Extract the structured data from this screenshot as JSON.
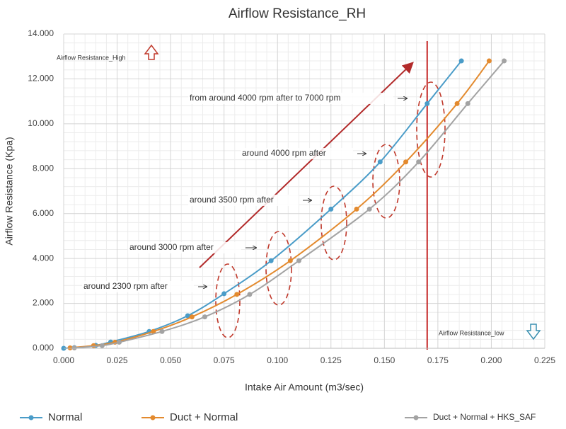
{
  "chart_data": {
    "type": "line",
    "title": "Airflow Resistance_RH",
    "x_label": "Intake Air Amount (m3/sec)",
    "y_label": "Airflow Resistance (Kpa)",
    "xlim": [
      0,
      0.225
    ],
    "ylim": [
      0,
      14
    ],
    "xticks": [
      {
        "value": 0,
        "label": "0.000"
      },
      {
        "value": 0.025,
        "label": "0.025"
      },
      {
        "value": 0.05,
        "label": "0.050"
      },
      {
        "value": 0.075,
        "label": "0.075"
      },
      {
        "value": 0.1,
        "label": "0.100"
      },
      {
        "value": 0.125,
        "label": "0.125"
      },
      {
        "value": 0.15,
        "label": "0.150"
      },
      {
        "value": 0.175,
        "label": "0.175"
      },
      {
        "value": 0.2,
        "label": "0.200"
      },
      {
        "value": 0.225,
        "label": "0.225"
      }
    ],
    "yticks": [
      {
        "value": 0,
        "label": "0.000"
      },
      {
        "value": 2,
        "label": "2.000"
      },
      {
        "value": 4,
        "label": "4.000"
      },
      {
        "value": 6,
        "label": "6.000"
      },
      {
        "value": 8,
        "label": "8.000"
      },
      {
        "value": 10,
        "label": "10.000"
      },
      {
        "value": 12,
        "label": "12.000"
      },
      {
        "value": 14,
        "label": "14.000"
      }
    ],
    "grid": true,
    "legend": "bottom",
    "series": [
      {
        "name": "Normal",
        "color": "#4a9cc8",
        "x": [
          0,
          0.005,
          0.015,
          0.022,
          0.04,
          0.058,
          0.075,
          0.097,
          0.125,
          0.148,
          0.17,
          0.186
        ],
        "values": [
          0,
          0.03,
          0.13,
          0.28,
          0.75,
          1.45,
          2.43,
          3.9,
          6.2,
          8.3,
          10.9,
          12.8
        ]
      },
      {
        "name": "Duct + Normal",
        "color": "#e38a2e",
        "x": [
          0.003,
          0.014,
          0.024,
          0.042,
          0.06,
          0.081,
          0.106,
          0.137,
          0.16,
          0.184,
          0.199
        ],
        "values": [
          0.02,
          0.12,
          0.27,
          0.75,
          1.4,
          2.4,
          3.9,
          6.2,
          8.3,
          10.9,
          12.8
        ]
      },
      {
        "name": "Duct + Normal + HKS_SAF",
        "color": "#a3a3a3",
        "x": [
          0.005,
          0.018,
          0.026,
          0.046,
          0.066,
          0.087,
          0.11,
          0.143,
          0.166,
          0.189,
          0.206
        ],
        "values": [
          0.02,
          0.12,
          0.27,
          0.75,
          1.4,
          2.4,
          3.9,
          6.2,
          8.3,
          10.9,
          12.8
        ]
      }
    ],
    "vline": {
      "x": 0.17,
      "color": "#c62828"
    },
    "annotations": [
      "around 2300 rpm after",
      "around 3000 rpm after",
      "around 3500 rpm after",
      "around 4000 rpm after",
      "from around 4000 rpm after to 7000 rpm"
    ],
    "high_label": "Airflow Resistance_High",
    "low_label": "Airflow Resistance_low"
  }
}
